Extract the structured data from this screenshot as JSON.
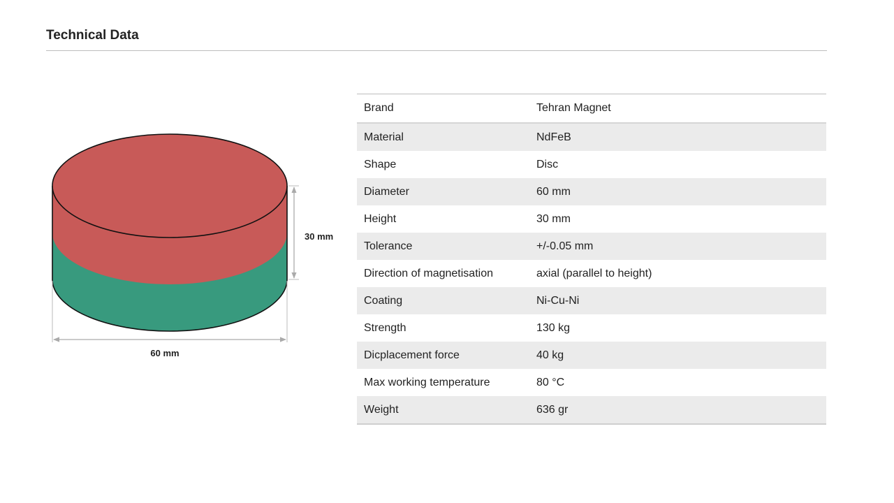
{
  "header": {
    "title": "Technical Data"
  },
  "diagram": {
    "height_label": "30 mm",
    "diameter_label": "60 mm"
  },
  "table": {
    "rows": [
      [
        "Brand",
        "Tehran Magnet"
      ],
      [
        "Material",
        "NdFeB"
      ],
      [
        "Shape",
        "Disc"
      ],
      [
        "Diameter",
        "60 mm"
      ],
      [
        "Height",
        "30 mm"
      ],
      [
        "Tolerance",
        "+/-0.05 mm"
      ],
      [
        "Direction of magnetisation",
        "axial (parallel to height)"
      ],
      [
        "Coating",
        "Ni-Cu-Ni"
      ],
      [
        "Strength",
        "130 kg"
      ],
      [
        "Dicplacement force",
        "40 kg"
      ],
      [
        "Max working temperature",
        "80 °C"
      ],
      [
        "Weight",
        "636 gr"
      ]
    ]
  }
}
